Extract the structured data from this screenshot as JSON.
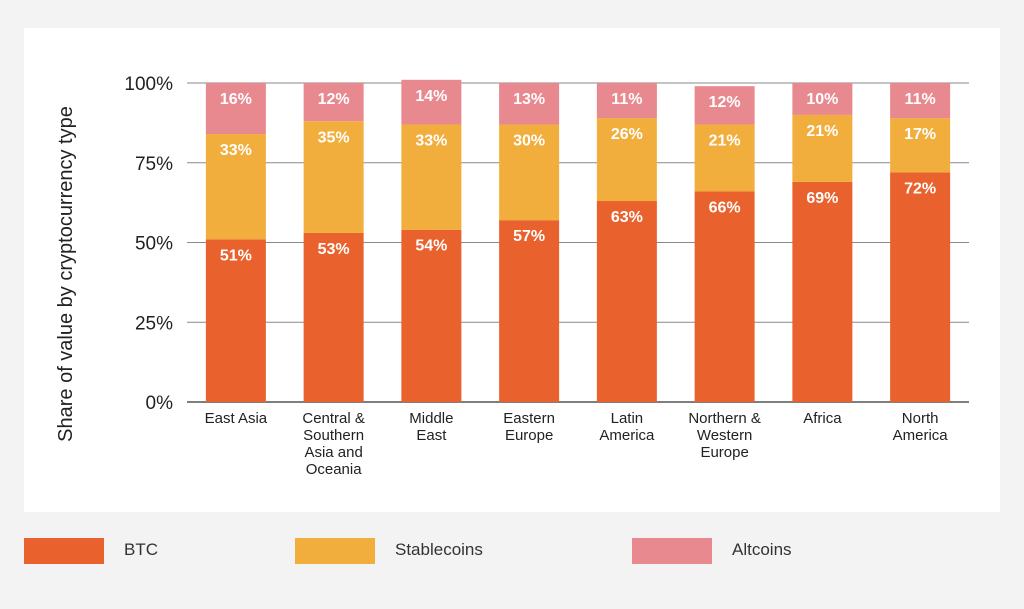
{
  "chart_data": {
    "type": "bar",
    "stacked": true,
    "categories": [
      [
        "East Asia"
      ],
      [
        "Central &",
        "Southern",
        "Asia and",
        "Oceania"
      ],
      [
        "Middle",
        "East"
      ],
      [
        "Eastern",
        "Europe"
      ],
      [
        "Latin",
        "America"
      ],
      [
        "Northern &",
        "Western",
        "Europe"
      ],
      [
        "Africa"
      ],
      [
        "North",
        "America"
      ]
    ],
    "series": [
      {
        "name": "BTC",
        "color": "#e9612c",
        "values": [
          51,
          53,
          54,
          57,
          63,
          66,
          69,
          72
        ],
        "labels": [
          "51%",
          "53%",
          "54%",
          "57%",
          "63%",
          "66%",
          "69%",
          "72%"
        ]
      },
      {
        "name": "Stablecoins",
        "color": "#f2ae3d",
        "values": [
          33,
          35,
          33,
          30,
          26,
          21,
          21,
          17
        ],
        "labels": [
          "33%",
          "35%",
          "33%",
          "30%",
          "26%",
          "21%",
          "21%",
          "17%"
        ]
      },
      {
        "name": "Altcoins",
        "color": "#e8888f",
        "values": [
          16,
          12,
          14,
          13,
          11,
          12,
          10,
          11
        ],
        "labels": [
          "16%",
          "12%",
          "14%",
          "13%",
          "11%",
          "12%",
          "10%",
          "11%"
        ]
      }
    ],
    "ylabel": "Share of value by cryptocurrency type",
    "ylim": [
      0,
      100
    ],
    "yticks": [
      0,
      25,
      50,
      75,
      100
    ],
    "ytick_labels": [
      "0%",
      "25%",
      "50%",
      "75%",
      "100%"
    ],
    "grid": true,
    "legend_position": "bottom"
  }
}
